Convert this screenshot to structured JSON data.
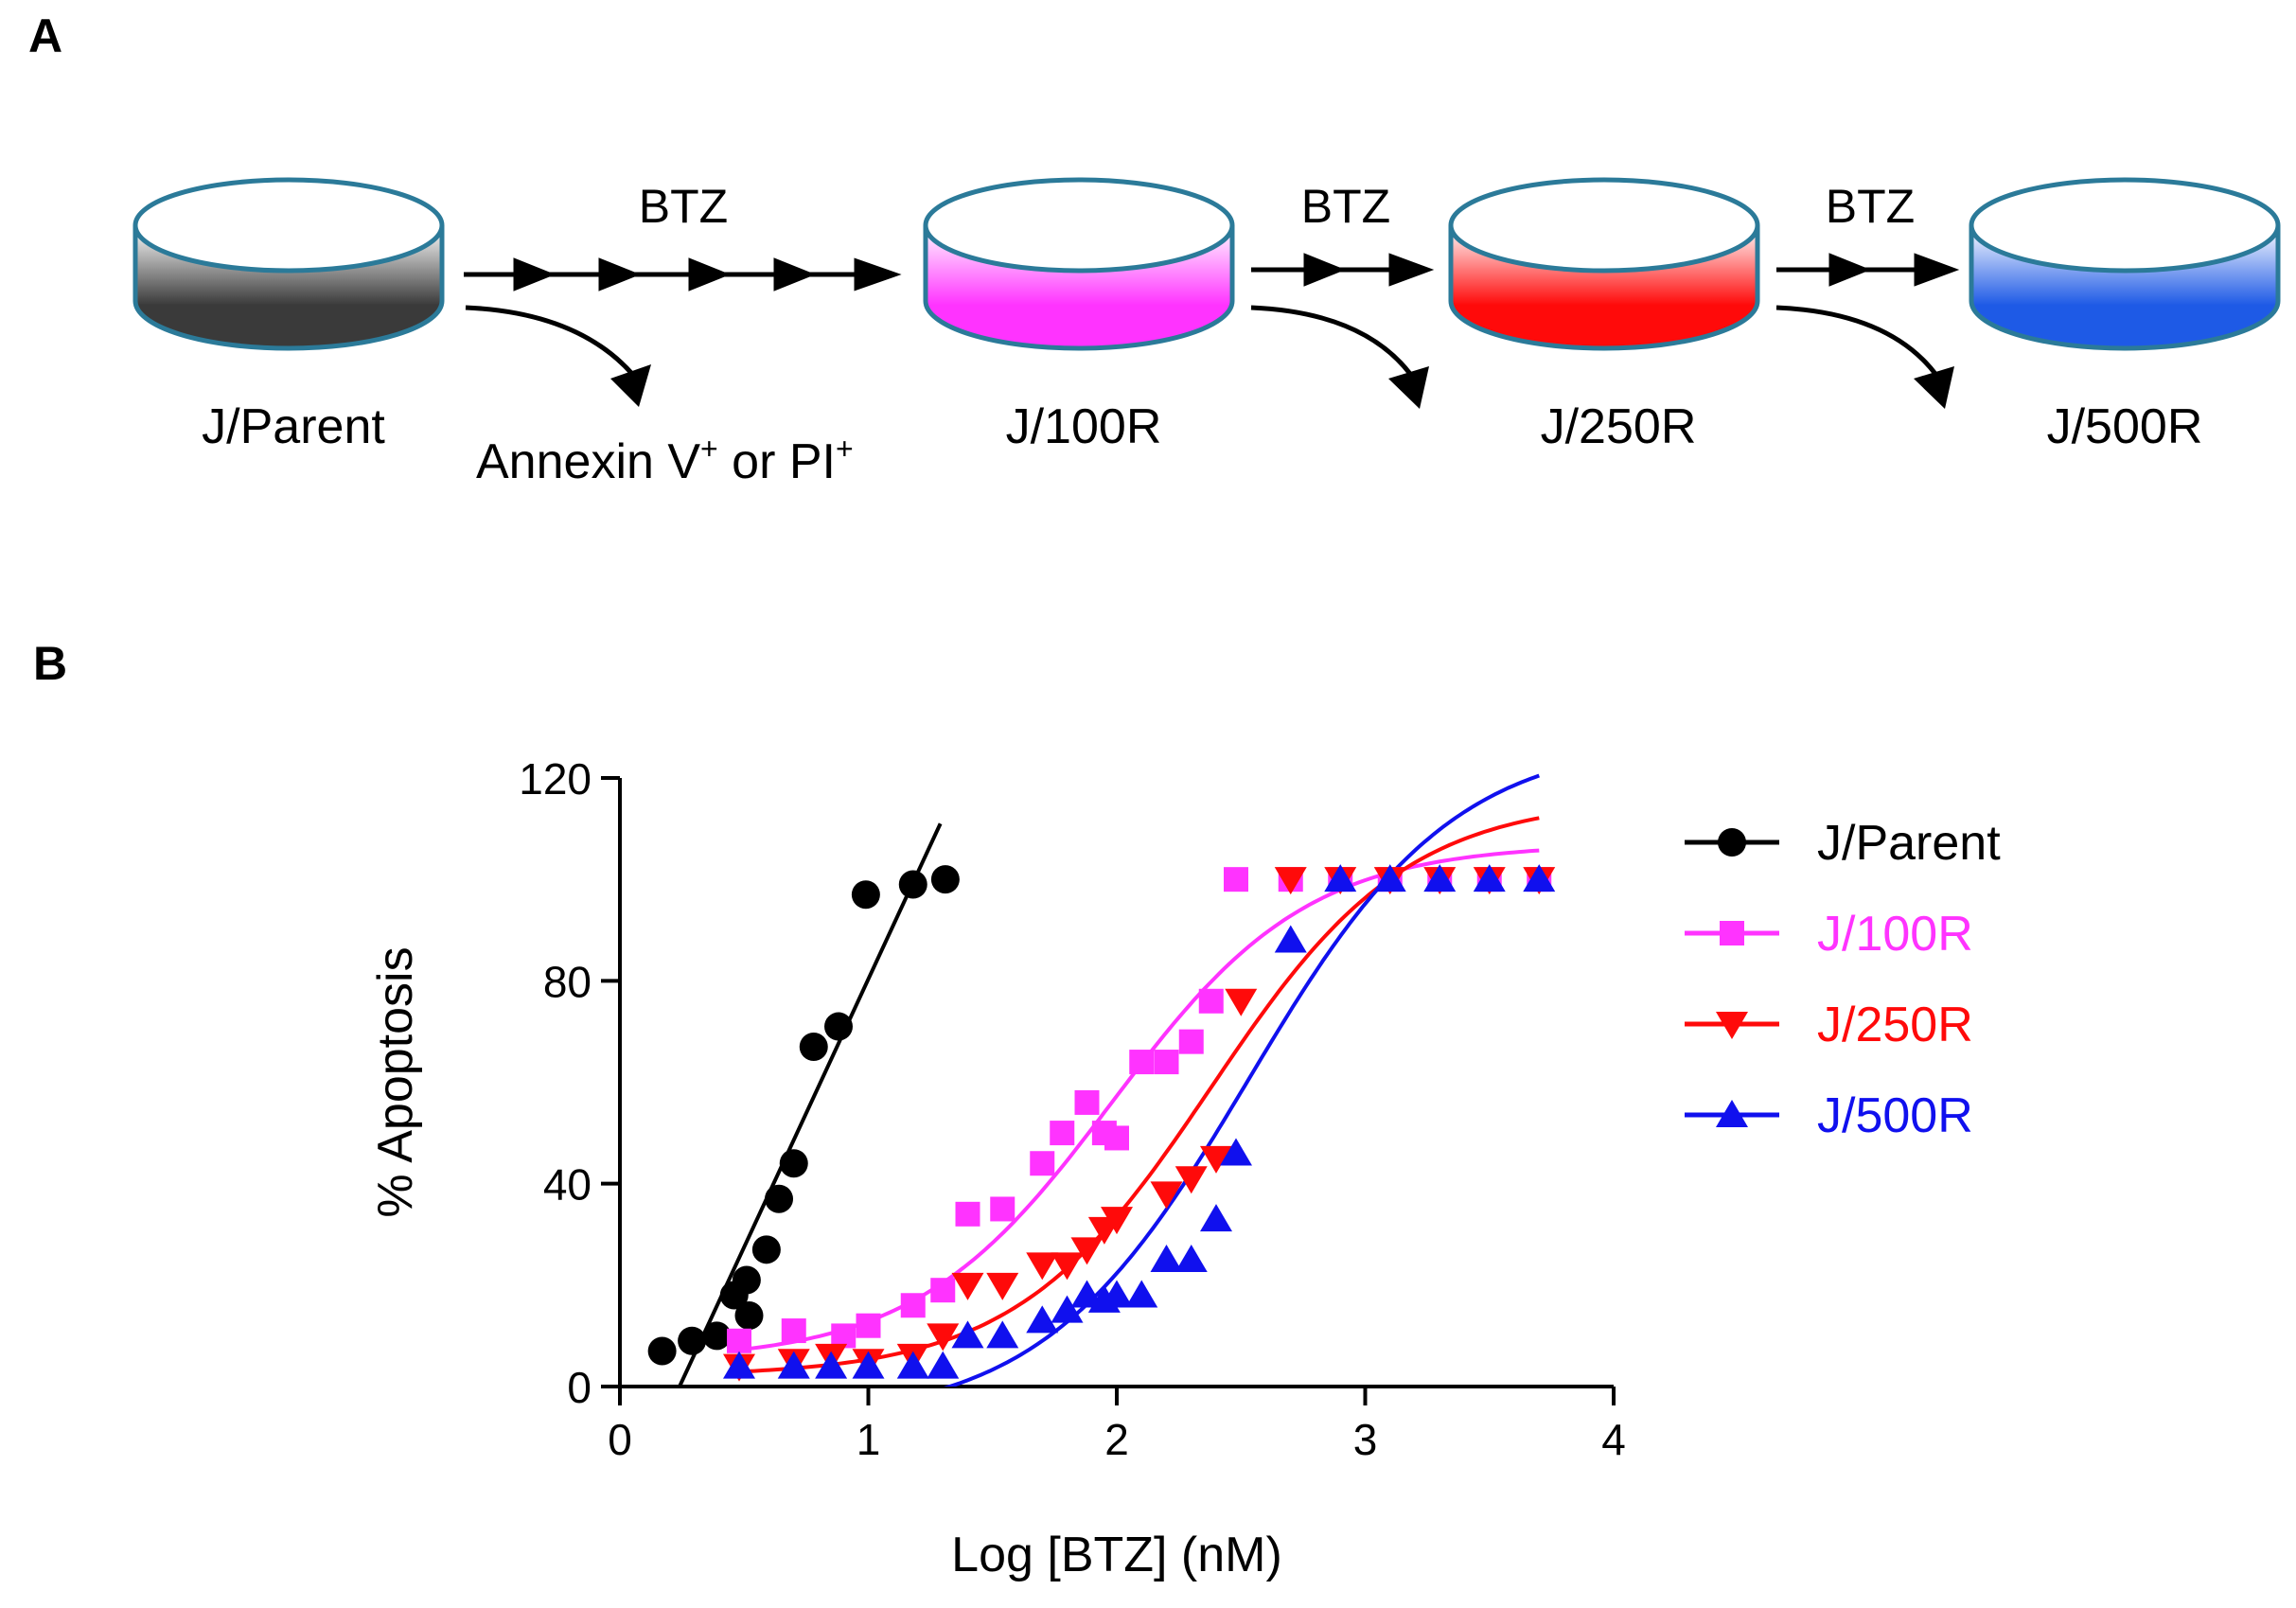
{
  "panel_a": {
    "label": "A",
    "dishes": [
      {
        "name": "J/Parent",
        "color": "#3a3a3a"
      },
      {
        "name": "J/100R",
        "color": "#ff33ff"
      },
      {
        "name": "J/250R",
        "color": "#ff0a0a"
      },
      {
        "name": "J/500R",
        "color": "#1e5ae6"
      }
    ],
    "treatment": "BTZ",
    "removed_label_main": "Annexin V",
    "removed_sup1": "+",
    "removed_mid": " or PI",
    "removed_sup2": "+",
    "rim_color": "#2b7a99"
  },
  "panel_b": {
    "label": "B"
  },
  "chart_data": {
    "type": "scatter",
    "title": "",
    "xlabel": "Log [BTZ] (nM)",
    "ylabel": "% Apoptosis",
    "xlim": [
      0,
      4
    ],
    "ylim": [
      0,
      120
    ],
    "xticks": [
      "0",
      "1",
      "2",
      "3",
      "4"
    ],
    "yticks": [
      "0",
      "40",
      "80",
      "120"
    ],
    "legend_position": "right",
    "series": [
      {
        "name": "J/Parent",
        "color": "#000000",
        "marker": "circle",
        "points": [
          [
            0.17,
            7
          ],
          [
            0.29,
            9
          ],
          [
            0.39,
            10
          ],
          [
            0.46,
            18
          ],
          [
            0.51,
            21
          ],
          [
            0.52,
            14
          ],
          [
            0.59,
            27
          ],
          [
            0.64,
            37
          ],
          [
            0.7,
            44
          ],
          [
            0.78,
            67
          ],
          [
            0.88,
            71
          ],
          [
            0.99,
            97
          ],
          [
            1.18,
            99
          ],
          [
            1.31,
            100
          ]
        ],
        "fit": {
          "kind": "line",
          "x": [
            0.24,
            1.29
          ],
          "y": [
            0,
            111
          ]
        }
      },
      {
        "name": "J/100R",
        "color": "#ff33ff",
        "marker": "square",
        "points": [
          [
            0.48,
            9
          ],
          [
            0.7,
            11
          ],
          [
            0.9,
            10
          ],
          [
            1.0,
            12
          ],
          [
            1.18,
            16
          ],
          [
            1.3,
            19
          ],
          [
            1.4,
            34
          ],
          [
            1.54,
            35
          ],
          [
            1.7,
            44
          ],
          [
            1.78,
            50
          ],
          [
            1.88,
            56
          ],
          [
            1.95,
            50
          ],
          [
            2.0,
            49
          ],
          [
            2.1,
            64
          ],
          [
            2.2,
            64
          ],
          [
            2.3,
            68
          ],
          [
            2.38,
            76
          ],
          [
            2.48,
            100
          ],
          [
            2.7,
            100
          ],
          [
            2.9,
            100
          ],
          [
            3.1,
            100
          ],
          [
            3.3,
            100
          ],
          [
            3.5,
            100
          ],
          [
            3.7,
            100
          ]
        ],
        "fit": {
          "kind": "sigmoid",
          "bottom": 5,
          "top": 107,
          "logec50": 1.98,
          "hill": 1.1,
          "x_range": [
            0.48,
            3.7
          ]
        }
      },
      {
        "name": "J/250R",
        "color": "#ff0a0a",
        "marker": "triangle-down",
        "points": [
          [
            0.48,
            4
          ],
          [
            0.7,
            5
          ],
          [
            0.85,
            6
          ],
          [
            1.0,
            5
          ],
          [
            1.18,
            6
          ],
          [
            1.3,
            10
          ],
          [
            1.4,
            20
          ],
          [
            1.54,
            20
          ],
          [
            1.7,
            24
          ],
          [
            1.8,
            24
          ],
          [
            1.88,
            27
          ],
          [
            1.95,
            31
          ],
          [
            2.0,
            33
          ],
          [
            2.2,
            38
          ],
          [
            2.3,
            41
          ],
          [
            2.4,
            45
          ],
          [
            2.5,
            76
          ],
          [
            2.7,
            100
          ],
          [
            2.9,
            100
          ],
          [
            3.1,
            100
          ],
          [
            3.3,
            100
          ],
          [
            3.5,
            100
          ],
          [
            3.7,
            100
          ]
        ],
        "fit": {
          "kind": "sigmoid",
          "bottom": 2,
          "top": 116,
          "logec50": 2.38,
          "hill": 1.1,
          "x_range": [
            0.48,
            3.7
          ]
        }
      },
      {
        "name": "J/500R",
        "color": "#1010ee",
        "marker": "triangle-up",
        "points": [
          [
            0.48,
            4
          ],
          [
            0.7,
            4
          ],
          [
            0.85,
            4
          ],
          [
            1.0,
            4
          ],
          [
            1.18,
            4
          ],
          [
            1.3,
            4
          ],
          [
            1.4,
            10
          ],
          [
            1.54,
            10
          ],
          [
            1.7,
            13
          ],
          [
            1.8,
            15
          ],
          [
            1.88,
            18
          ],
          [
            1.95,
            17
          ],
          [
            2.0,
            18
          ],
          [
            2.1,
            18
          ],
          [
            2.2,
            25
          ],
          [
            2.3,
            25
          ],
          [
            2.4,
            33
          ],
          [
            2.48,
            46
          ],
          [
            2.7,
            88
          ],
          [
            2.9,
            100
          ],
          [
            3.1,
            100
          ],
          [
            3.3,
            100
          ],
          [
            3.5,
            100
          ],
          [
            3.7,
            100
          ]
        ],
        "fit": {
          "kind": "sigmoid",
          "bottom": -7,
          "top": 128,
          "logec50": 2.53,
          "hill": 1.05,
          "x_range": [
            0.87,
            3.7
          ]
        }
      }
    ]
  }
}
